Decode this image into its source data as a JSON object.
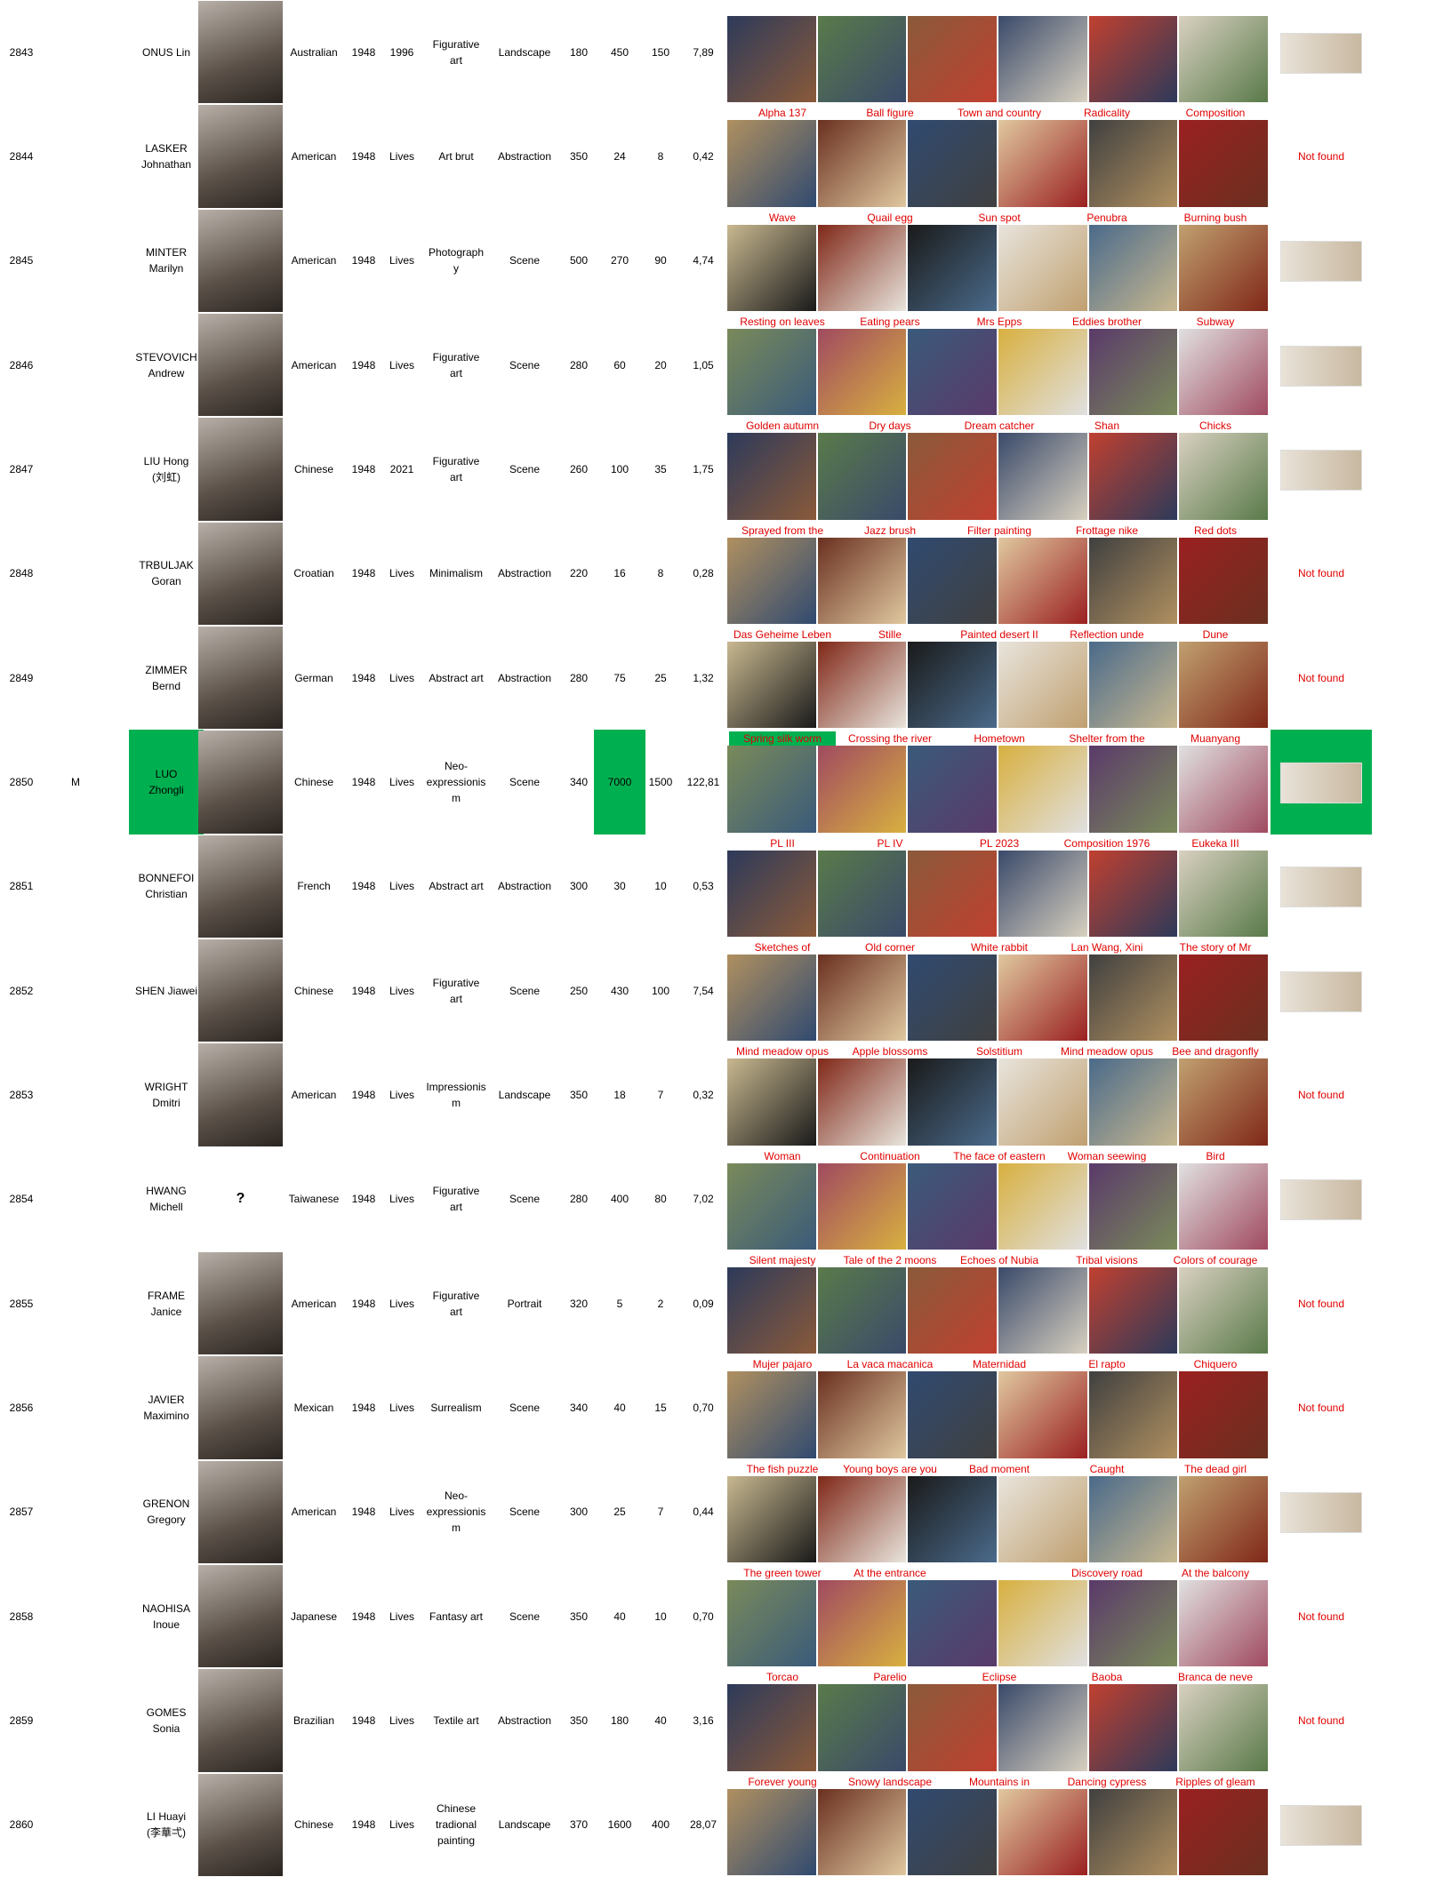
{
  "table": {
    "rows": [
      {
        "id": "2843",
        "name": [
          "ONUS Lin"
        ],
        "nationality": "Australian",
        "born": "1948",
        "died": "1996",
        "movement": [
          "Figurative",
          "art"
        ],
        "genre": "Landscape",
        "v1": "180",
        "v2": "450",
        "v3": "150",
        "v4": "7,89",
        "titles": []
      },
      {
        "id": "2844",
        "name": [
          "LASKER",
          "Johnathan"
        ],
        "nationality": "American",
        "born": "1948",
        "died": "Lives",
        "movement": [
          "Art brut"
        ],
        "genre": "Abstraction",
        "v1": "350",
        "v2": "24",
        "v3": "8",
        "v4": "0,42",
        "titles": [
          "Alpha 137",
          "Ball figure",
          "Town and country",
          "Radicality",
          "Composition"
        ],
        "signature": "Not found"
      },
      {
        "id": "2845",
        "name": [
          "MINTER",
          "Marilyn"
        ],
        "nationality": "American",
        "born": "1948",
        "died": "Lives",
        "movement": [
          "Photograph",
          "y"
        ],
        "genre": "Scene",
        "v1": "500",
        "v2": "270",
        "v3": "90",
        "v4": "4,74",
        "titles": [
          "Wave",
          "Quail egg",
          "Sun spot",
          "Penubra",
          "Burning bush"
        ]
      },
      {
        "id": "2846",
        "name": [
          "STEVOVICH",
          "Andrew"
        ],
        "nationality": "American",
        "born": "1948",
        "died": "Lives",
        "movement": [
          "Figurative",
          "art"
        ],
        "genre": "Scene",
        "v1": "280",
        "v2": "60",
        "v3": "20",
        "v4": "1,05",
        "titles": [
          "Resting on leaves",
          "Eating pears",
          "Mrs Epps",
          "Eddies brother",
          "Subway"
        ]
      },
      {
        "id": "2847",
        "name": [
          "LIU Hong",
          "(刘虹)"
        ],
        "nationality": "Chinese",
        "born": "1948",
        "died": "2021",
        "movement": [
          "Figurative",
          "art"
        ],
        "genre": "Scene",
        "v1": "260",
        "v2": "100",
        "v3": "35",
        "v4": "1,75",
        "titles": [
          "Golden autumn",
          "Dry days",
          "Dream catcher",
          "Shan",
          "Chicks"
        ]
      },
      {
        "id": "2848",
        "name": [
          "TRBULJAK",
          "Goran"
        ],
        "nationality": "Croatian",
        "born": "1948",
        "died": "Lives",
        "movement": [
          "Minimalism"
        ],
        "genre": "Abstraction",
        "v1": "220",
        "v2": "16",
        "v3": "8",
        "v4": "0,28",
        "titles": [
          "Sprayed from the",
          "Jazz brush",
          "Filter painting",
          "Frottage nike",
          "Red dots"
        ],
        "signature": "Not found"
      },
      {
        "id": "2849",
        "name": [
          "ZIMMER",
          "Bernd"
        ],
        "nationality": "German",
        "born": "1948",
        "died": "Lives",
        "movement": [
          "Abstract art"
        ],
        "genre": "Abstraction",
        "v1": "280",
        "v2": "75",
        "v3": "25",
        "v4": "1,32",
        "titles": [
          "Das Geheime Leben",
          "Stille",
          "Painted desert II",
          "Reflection unde",
          "Dune"
        ],
        "signature": "Not found"
      },
      {
        "id": "2850",
        "flag": "M",
        "name": [
          "LUO",
          "Zhongli"
        ],
        "nationality": "Chinese",
        "born": "1948",
        "died": "Lives",
        "movement": [
          "Neo-",
          "expressionis",
          "m"
        ],
        "genre": "Scene",
        "v1": "340",
        "v2": "7000",
        "v3": "1500",
        "v4": "122,81",
        "titles": [
          "Spring silk worm",
          "Crossing the river",
          "Hometown",
          "Shelter from the",
          "Muanyang"
        ]
      },
      {
        "id": "2851",
        "name": [
          "BONNEFOI",
          "Christian"
        ],
        "nationality": "French",
        "born": "1948",
        "died": "Lives",
        "movement": [
          "Abstract art"
        ],
        "genre": "Abstraction",
        "v1": "300",
        "v2": "30",
        "v3": "10",
        "v4": "0,53",
        "titles": [
          "PL III",
          "PL IV",
          "PL 2023",
          "Composition 1976",
          "Eukeka III"
        ]
      },
      {
        "id": "2852",
        "name": [
          "SHEN Jiawei"
        ],
        "nationality": "Chinese",
        "born": "1948",
        "died": "Lives",
        "movement": [
          "Figurative",
          "art"
        ],
        "genre": "Scene",
        "v1": "250",
        "v2": "430",
        "v3": "100",
        "v4": "7,54",
        "titles": [
          "Sketches of",
          "Old corner",
          "White rabbit",
          "Lan Wang, Xini",
          "The story of Mr"
        ]
      },
      {
        "id": "2853",
        "name": [
          "WRIGHT",
          "Dmitri"
        ],
        "nationality": "American",
        "born": "1948",
        "died": "Lives",
        "movement": [
          "Impressionis",
          "m"
        ],
        "genre": "Landscape",
        "v1": "350",
        "v2": "18",
        "v3": "7",
        "v4": "0,32",
        "titles": [
          "Mind meadow opus",
          "Apple blossoms",
          "Solstitium",
          "Mind meadow opus",
          "Bee and dragonfly"
        ],
        "signature": "Not found"
      },
      {
        "id": "2854",
        "name": [
          "HWANG",
          "Michell"
        ],
        "photo_text": "?",
        "nationality": "Taiwanese",
        "born": "1948",
        "died": "Lives",
        "movement": [
          "Figurative",
          "art"
        ],
        "genre": "Scene",
        "v1": "280",
        "v2": "400",
        "v3": "80",
        "v4": "7,02",
        "titles": [
          "Woman",
          "Continuation",
          "The face of eastern",
          "Woman seewing",
          "Bird"
        ]
      },
      {
        "id": "2855",
        "name": [
          "FRAME",
          "Janice"
        ],
        "nationality": "American",
        "born": "1948",
        "died": "Lives",
        "movement": [
          "Figurative",
          "art"
        ],
        "genre": "Portrait",
        "v1": "320",
        "v2": "5",
        "v3": "2",
        "v4": "0,09",
        "titles": [
          "Silent majesty",
          "Tale of the 2 moons",
          "Echoes of Nubia",
          "Tribal visions",
          "Colors of courage"
        ],
        "signature": "Not found"
      },
      {
        "id": "2856",
        "name": [
          "JAVIER",
          "Maximino"
        ],
        "nationality": "Mexican",
        "born": "1948",
        "died": "Lives",
        "movement": [
          "Surrealism"
        ],
        "genre": "Scene",
        "v1": "340",
        "v2": "40",
        "v3": "15",
        "v4": "0,70",
        "titles": [
          "Mujer pajaro",
          "La vaca macanica",
          "Maternidad",
          "El rapto",
          "Chiquero"
        ],
        "signature": "Not found"
      },
      {
        "id": "2857",
        "name": [
          "GRENON",
          "Gregory"
        ],
        "nationality": "American",
        "born": "1948",
        "died": "Lives",
        "movement": [
          "Neo-",
          "expressionis",
          "m"
        ],
        "genre": "Scene",
        "v1": "300",
        "v2": "25",
        "v3": "7",
        "v4": "0,44",
        "titles": [
          "The fish puzzle",
          "Young boys are you",
          "Bad moment",
          "Caught",
          "The dead girl"
        ]
      },
      {
        "id": "2858",
        "name": [
          "NAOHISA",
          "Inoue"
        ],
        "nationality": "Japanese",
        "born": "1948",
        "died": "Lives",
        "movement": [
          "Fantasy art"
        ],
        "genre": "Scene",
        "v1": "350",
        "v2": "40",
        "v3": "10",
        "v4": "0,70",
        "titles": [
          "The green tower",
          "At the entrance",
          null,
          "Discovery road",
          "At the balcony"
        ],
        "signature": "Not found"
      },
      {
        "id": "2859",
        "name": [
          "GOMES",
          "Sonia"
        ],
        "nationality": "Brazilian",
        "born": "1948",
        "died": "Lives",
        "movement": [
          "Textile art"
        ],
        "genre": "Abstraction",
        "v1": "350",
        "v2": "180",
        "v3": "40",
        "v4": "3,16",
        "titles": [
          "Torcao",
          "Parelio",
          "Eclipse",
          "Baoba",
          "Branca de neve"
        ],
        "signature": "Not found"
      },
      {
        "id": "2860",
        "name": [
          "LI Huayi",
          "(李華弌)"
        ],
        "nationality": "Chinese",
        "born": "1948",
        "died": "Lives",
        "movement": [
          "Chinese",
          "tradional",
          "painting"
        ],
        "genre": "Landscape",
        "v1": "370",
        "v2": "1600",
        "v3": "400",
        "v4": "28,07",
        "titles": [
          "Forever young",
          "Snowy landscape",
          "Mountains in",
          "Dancing cypress",
          "Ripples of gleam"
        ]
      }
    ]
  }
}
